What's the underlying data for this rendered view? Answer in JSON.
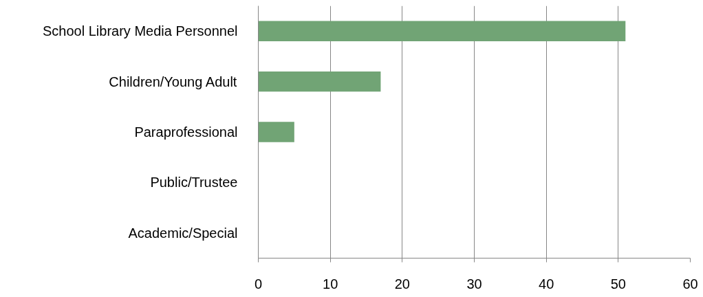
{
  "chart_data": {
    "type": "bar",
    "orientation": "horizontal",
    "categories": [
      "School Library Media Personnel",
      "Children/Young Adult",
      "Paraprofessional",
      "Public/Trustee",
      "Academic/Special"
    ],
    "values": [
      51,
      17,
      5,
      0,
      0
    ],
    "color": "#71a475",
    "xlim": [
      0,
      60
    ],
    "xticks": [
      0,
      10,
      20,
      30,
      40,
      50,
      60
    ],
    "grid": "x"
  }
}
